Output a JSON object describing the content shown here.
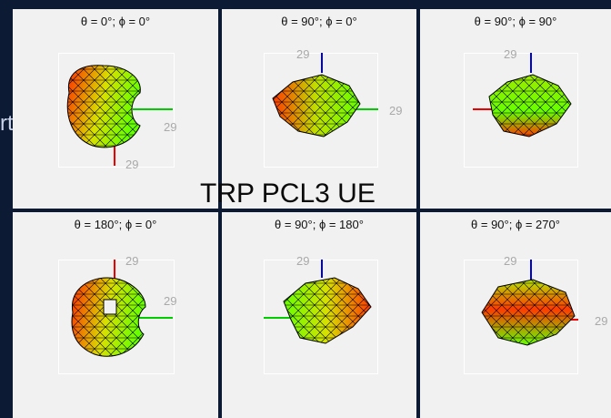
{
  "slide": {
    "title": "TRP PCL3 UE",
    "side_fragment": "rtis)"
  },
  "panels": [
    {
      "title": "θ = 0°; ϕ = 0°",
      "labels": [
        "29",
        "29"
      ],
      "axes": [
        "green-right",
        "red-down"
      ]
    },
    {
      "title": "θ = 90°; ϕ = 0°",
      "labels": [
        "29",
        "29"
      ],
      "axes": [
        "blue-up",
        "green-right"
      ]
    },
    {
      "title": "θ = 90°; ϕ = 90°",
      "labels": [
        "29"
      ],
      "axes": [
        "blue-up",
        "red-left"
      ]
    },
    {
      "title": "θ = 180°; ϕ = 0°",
      "labels": [
        "29",
        "29"
      ],
      "axes": [
        "red-up",
        "green-right"
      ]
    },
    {
      "title": "θ = 90°; ϕ = 180°",
      "labels": [
        "29"
      ],
      "axes": [
        "blue-up",
        "green-left"
      ]
    },
    {
      "title": "θ = 90°; ϕ = 270°",
      "labels": [
        "29",
        "29"
      ],
      "axes": [
        "blue-up",
        "red-right"
      ]
    }
  ],
  "colors": {
    "background": "#0c1a33",
    "panel": "#f1f1f1",
    "axis_x": "#00cc00",
    "axis_y": "#ee0000",
    "axis_z": "#0000dd",
    "mesh_hot": "#ff2a00",
    "mesh_cool": "#66ff00"
  }
}
